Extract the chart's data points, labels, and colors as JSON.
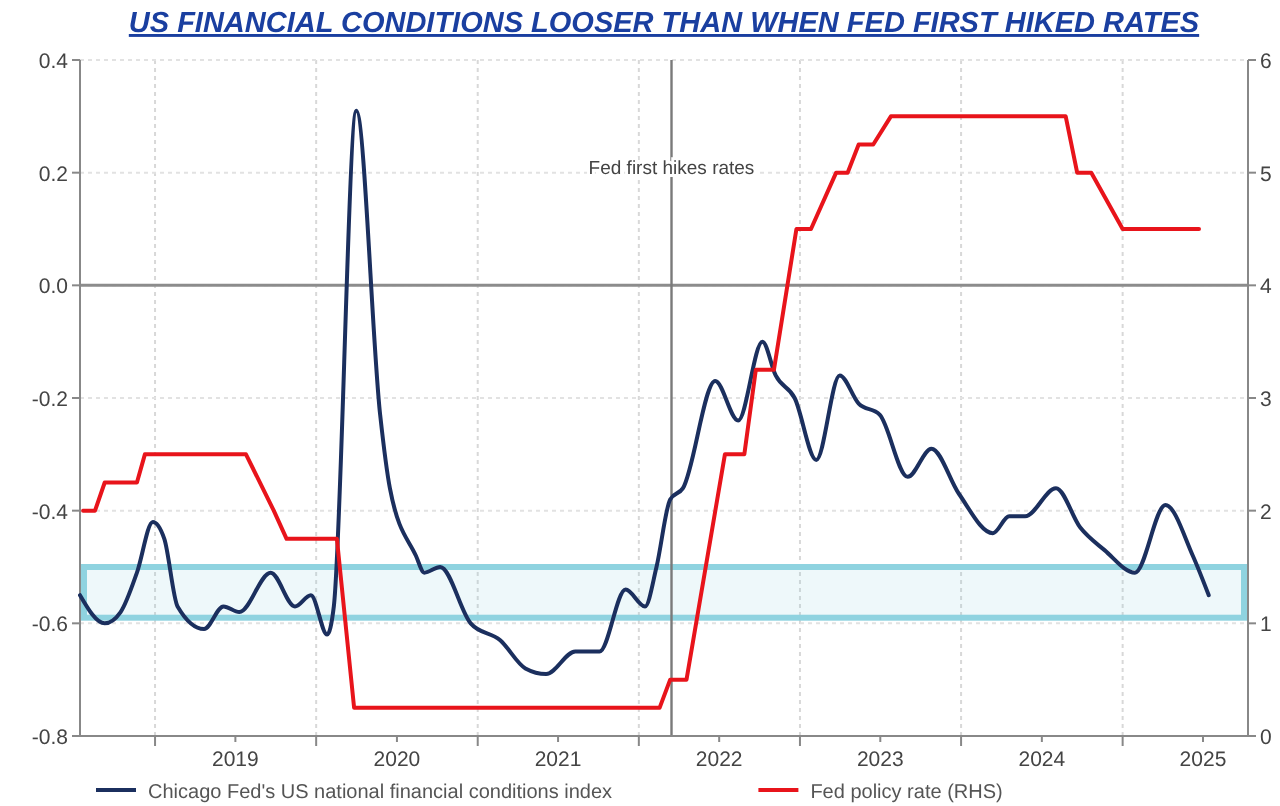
{
  "chart_data": {
    "type": "line",
    "title": "US FINANCIAL CONDITIONS LOOSER THAN WHEN FED FIRST HIKED RATES",
    "xlim": [
      "2018-07-15",
      "2025-10-12"
    ],
    "xticks": [
      {
        "value": "2019-01-01",
        "label": null
      },
      {
        "value": "2019-07-02",
        "label": "2019"
      },
      {
        "value": "2020-01-01",
        "label": null
      },
      {
        "value": "2020-07-02",
        "label": "2020"
      },
      {
        "value": "2021-01-01",
        "label": null
      },
      {
        "value": "2021-07-02",
        "label": "2021"
      },
      {
        "value": "2022-01-01",
        "label": null
      },
      {
        "value": "2022-07-02",
        "label": "2022"
      },
      {
        "value": "2023-01-01",
        "label": null
      },
      {
        "value": "2023-07-02",
        "label": "2023"
      },
      {
        "value": "2024-01-01",
        "label": null
      },
      {
        "value": "2024-07-02",
        "label": "2024"
      },
      {
        "value": "2025-01-01",
        "label": null
      },
      {
        "value": "2025-07-02",
        "label": "2025"
      }
    ],
    "ylim": [
      -0.8,
      0.4
    ],
    "yticks": [
      {
        "value": -0.8,
        "label": "-0.8"
      },
      {
        "value": -0.6,
        "label": "-0.6"
      },
      {
        "value": -0.4,
        "label": "-0.4"
      },
      {
        "value": -0.2,
        "label": "-0.2"
      },
      {
        "value": 0,
        "label": "0.0"
      },
      {
        "value": 0.2,
        "label": "0.2"
      },
      {
        "value": 0.4,
        "label": "0.4"
      }
    ],
    "y2lim": [
      0,
      6
    ],
    "y2ticks": [
      0,
      1,
      2,
      3,
      4,
      5,
      6
    ],
    "grid": true,
    "legend": "bottom",
    "series": [
      {
        "name": "Chicago Fed's US national financial conditions index",
        "color": "#1b2f5e",
        "x": [
          "2018-07-15",
          "2018-09-09",
          "2018-10-15",
          "2018-11-21",
          "2018-12-27",
          "2019-01-22",
          "2019-02-21",
          "2019-04-22",
          "2019-06-05",
          "2019-07-11",
          "2019-09-20",
          "2019-11-14",
          "2019-12-20",
          "2020-01-26",
          "2020-02-10",
          "2020-04-01",
          "2020-05-25",
          "2020-06-16",
          "2020-08-14",
          "2020-09-02",
          "2020-10-08",
          "2020-12-16",
          "2021-02-21",
          "2021-04-19",
          "2021-06-05",
          "2021-08-10",
          "2021-10-04",
          "2021-12-02",
          "2022-01-15",
          "2022-02-10",
          "2022-03-13",
          "2022-04-11",
          "2022-06-23",
          "2022-08-14",
          "2022-10-08",
          "2022-11-07",
          "2022-12-20",
          "2023-02-07",
          "2023-04-01",
          "2023-05-14",
          "2023-07-01",
          "2023-09-02",
          "2023-10-26",
          "2023-12-27",
          "2024-03-13",
          "2024-04-19",
          "2024-05-25",
          "2024-08-03",
          "2024-09-27",
          "2024-11-21",
          "2025-01-29",
          "2025-04-08",
          "2025-06-09",
          "2025-07-15"
        ],
        "values": [
          -0.55,
          -0.6,
          -0.58,
          -0.51,
          -0.42,
          -0.45,
          -0.57,
          -0.61,
          -0.57,
          -0.58,
          -0.51,
          -0.57,
          -0.55,
          -0.62,
          -0.57,
          0.31,
          -0.23,
          -0.36,
          -0.48,
          -0.51,
          -0.5,
          -0.6,
          -0.63,
          -0.68,
          -0.69,
          -0.65,
          -0.65,
          -0.54,
          -0.57,
          -0.5,
          -0.38,
          -0.36,
          -0.17,
          -0.24,
          -0.1,
          -0.16,
          -0.2,
          -0.31,
          -0.16,
          -0.21,
          -0.23,
          -0.34,
          -0.29,
          -0.37,
          -0.44,
          -0.41,
          -0.41,
          -0.36,
          -0.43,
          -0.47,
          -0.51,
          -0.39,
          -0.48,
          -0.55
        ]
      },
      {
        "name": "Fed policy rate (RHS)",
        "color": "#e8141b",
        "axis": "y2",
        "x": [
          "2018-07-22",
          "2018-08-18",
          "2018-09-09",
          "2018-11-21",
          "2018-12-09",
          "2019-07-26",
          "2019-09-27",
          "2019-10-26",
          "2020-02-17",
          "2020-03-27",
          "2022-02-17",
          "2022-03-13",
          "2022-04-19",
          "2022-07-15",
          "2022-08-28",
          "2022-09-23",
          "2022-11-03",
          "2022-12-24",
          "2023-01-26",
          "2023-03-24",
          "2023-04-19",
          "2023-05-14",
          "2023-06-16",
          "2023-07-26",
          "2024-08-25",
          "2024-09-20",
          "2024-10-22",
          "2025-01-01",
          "2025-06-23"
        ],
        "values": [
          2.0,
          2.0,
          2.25,
          2.25,
          2.5,
          2.5,
          2.0,
          1.75,
          1.75,
          0.25,
          0.25,
          0.5,
          0.5,
          2.5,
          2.5,
          3.25,
          3.25,
          4.5,
          4.5,
          5.0,
          5.0,
          5.25,
          5.25,
          5.5,
          5.5,
          5.0,
          5.0,
          4.5,
          4.5
        ]
      }
    ],
    "ref_lines": [
      {
        "axis": "y",
        "value": 0,
        "color": "#8c8c8c"
      },
      {
        "axis": "x",
        "value": "2022-03-16",
        "label": "Fed first hikes rates",
        "color": "#7a7a7a"
      }
    ],
    "bands": [
      {
        "axis": "y",
        "from": -0.59,
        "to": -0.5,
        "color": "#8fd3e0"
      }
    ]
  }
}
